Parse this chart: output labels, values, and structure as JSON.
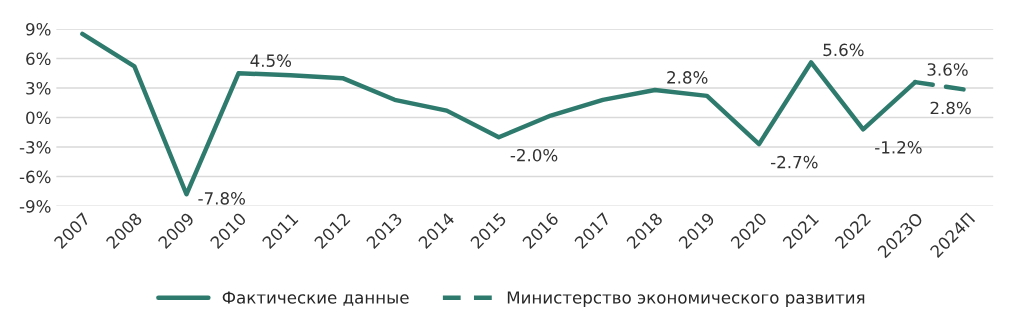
{
  "chart_data": {
    "type": "line",
    "categories": [
      "2007",
      "2008",
      "2009",
      "2010",
      "2011",
      "2012",
      "2013",
      "2014",
      "2015",
      "2016",
      "2017",
      "2018",
      "2019",
      "2020",
      "2021",
      "2022",
      "2023О",
      "2024П"
    ],
    "series": [
      {
        "name": "Фактические данные",
        "color": "#2e7b6e",
        "line_style": "solid",
        "values": [
          8.5,
          5.2,
          -7.8,
          4.5,
          4.3,
          4.0,
          1.8,
          0.7,
          -2.0,
          0.2,
          1.8,
          2.8,
          2.2,
          -2.7,
          5.6,
          -1.2,
          3.6,
          null
        ],
        "value_labels": [
          null,
          null,
          "-7.8%",
          "4.5%",
          null,
          null,
          null,
          null,
          "-2.0%",
          null,
          null,
          "2.8%",
          null,
          "-2.7%",
          "5.6%",
          "-1.2%",
          "3.6%",
          null
        ]
      },
      {
        "name": "Министерство экономического развития",
        "color": "#2e7b6e",
        "line_style": "dashed",
        "values": [
          null,
          null,
          null,
          null,
          null,
          null,
          null,
          null,
          null,
          null,
          null,
          null,
          null,
          null,
          null,
          null,
          3.6,
          2.8
        ],
        "value_labels": [
          null,
          null,
          null,
          null,
          null,
          null,
          null,
          null,
          null,
          null,
          null,
          null,
          null,
          null,
          null,
          null,
          null,
          "2.8%"
        ]
      }
    ],
    "ylim": [
      -9,
      9
    ],
    "yticks": [
      {
        "value": 9,
        "label": "9%"
      },
      {
        "value": 6,
        "label": "6%"
      },
      {
        "value": 3,
        "label": "3%"
      },
      {
        "value": 0,
        "label": "0%"
      },
      {
        "value": -3,
        "label": "-3%"
      },
      {
        "value": -6,
        "label": "-6%"
      },
      {
        "value": -9,
        "label": "-9%"
      }
    ],
    "grid": "y",
    "legend": "bottom",
    "marker": "none"
  }
}
